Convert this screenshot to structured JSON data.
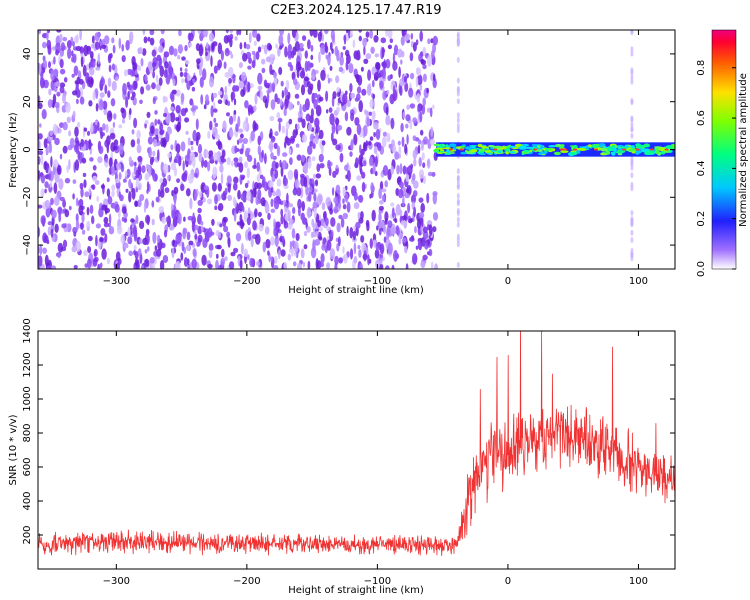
{
  "title": "C2E3.2024.125.17.47.R19",
  "chart_data": [
    {
      "type": "heatmap",
      "xlabel": "Height of straight line (km)",
      "ylabel": "Frequency (Hz)",
      "xlim": [
        -360,
        128
      ],
      "ylim": [
        -50,
        50
      ],
      "xticks": [
        -300,
        -200,
        -100,
        0,
        100
      ],
      "yticks": [
        -40,
        -20,
        0,
        20,
        40
      ],
      "colorbar": {
        "label": "Normalized spectral amplitude",
        "range": [
          0,
          0.95
        ],
        "ticks": [
          0.0,
          0.2,
          0.4,
          0.6,
          0.8
        ]
      },
      "regions": [
        {
          "description": "noise",
          "x_range": [
            -360,
            -55
          ],
          "freq_range": [
            -50,
            50
          ],
          "amplitude": [
            0.05,
            0.35
          ]
        },
        {
          "description": "signal line",
          "x_range": [
            -55,
            128
          ],
          "freq_center": 0,
          "freq_halfwidth": 3,
          "amplitude": [
            0.3,
            0.95
          ]
        }
      ],
      "grid": false
    },
    {
      "type": "line",
      "xlabel": "Height of straight line (km)",
      "ylabel": "SNR (10 * v/v)",
      "xlim": [
        -360,
        128
      ],
      "ylim": [
        0,
        1400
      ],
      "xticks": [
        -300,
        -200,
        -100,
        0,
        100
      ],
      "yticks": [
        200,
        400,
        600,
        800,
        1000,
        1200,
        1400
      ],
      "series_color": "#f03232",
      "profile": {
        "x": [
          -360,
          -300,
          -200,
          -100,
          -40,
          -33,
          -28,
          -20,
          -10,
          0,
          20,
          40,
          60,
          80,
          100,
          128
        ],
        "mean": [
          150,
          160,
          150,
          140,
          140,
          300,
          500,
          600,
          650,
          700,
          760,
          810,
          780,
          700,
          600,
          500
        ],
        "spread": [
          60,
          60,
          55,
          50,
          50,
          150,
          200,
          200,
          200,
          180,
          180,
          180,
          170,
          160,
          160,
          150
        ]
      },
      "grid": false
    }
  ]
}
